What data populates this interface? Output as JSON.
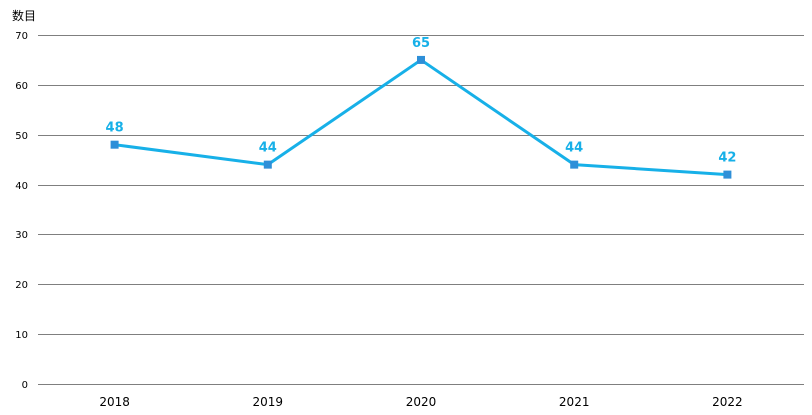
{
  "chart_data": {
    "type": "line",
    "ylabel": "数目",
    "xlabel": "",
    "categories": [
      "2018",
      "2019",
      "2020",
      "2021",
      "2022"
    ],
    "series": [
      {
        "values": [
          48,
          44,
          65,
          44,
          42
        ],
        "color": "#17b0e8"
      }
    ],
    "data_labels": [
      "48",
      "44",
      "65",
      "44",
      "42"
    ],
    "ylim": [
      0,
      70
    ],
    "yticks": [
      0,
      10,
      20,
      30,
      40,
      50,
      60,
      70
    ],
    "ytick_labels": [
      "0",
      "10",
      "20",
      "30",
      "40",
      "50",
      "60",
      "70"
    ],
    "grid": true,
    "marker": "square",
    "legend": "none"
  }
}
